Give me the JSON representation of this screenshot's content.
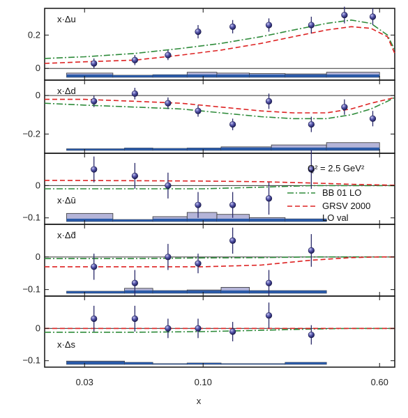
{
  "chart_data": {
    "type": "scatter",
    "x_axis": {
      "label": "x",
      "scale": "log",
      "range": [
        0.02,
        0.7
      ],
      "ticks": [
        {
          "value": 0.03,
          "label": "0.03"
        },
        {
          "value": 0.1,
          "label": "0.10"
        },
        {
          "value": 0.6,
          "label": "0.60"
        }
      ]
    },
    "legend": {
      "position": "right of third panel",
      "q2_label": "Q² = 2.5 GeV²",
      "entries": [
        {
          "name": "BB 01 LO",
          "color": "#2e8b3a",
          "style": "dash-dot"
        },
        {
          "name": "GRSV 2000",
          "name_line2": "LO val",
          "color": "#dd2222",
          "style": "dashed"
        }
      ]
    },
    "panels": [
      {
        "label": "x·Δu",
        "ylim": [
          -0.07,
          0.36
        ],
        "yticks": [
          {
            "value": 0,
            "label": "0"
          },
          {
            "value": 0.2,
            "label": "0.2"
          }
        ],
        "points": [
          {
            "x": 0.033,
            "y": 0.03,
            "err": 0.03
          },
          {
            "x": 0.05,
            "y": 0.05,
            "err": 0.03
          },
          {
            "x": 0.07,
            "y": 0.08,
            "err": 0.03
          },
          {
            "x": 0.095,
            "y": 0.22,
            "err": 0.04
          },
          {
            "x": 0.135,
            "y": 0.25,
            "err": 0.04
          },
          {
            "x": 0.195,
            "y": 0.26,
            "err": 0.04
          },
          {
            "x": 0.3,
            "y": 0.26,
            "err": 0.05
          },
          {
            "x": 0.42,
            "y": 0.32,
            "err": 0.05
          },
          {
            "x": 0.56,
            "y": 0.31,
            "err": 0.05
          }
        ],
        "curve_bb": [
          [
            0.02,
            0.06
          ],
          [
            0.03,
            0.07
          ],
          [
            0.05,
            0.09
          ],
          [
            0.08,
            0.12
          ],
          [
            0.12,
            0.15
          ],
          [
            0.18,
            0.19
          ],
          [
            0.25,
            0.23
          ],
          [
            0.35,
            0.27
          ],
          [
            0.45,
            0.29
          ],
          [
            0.55,
            0.27
          ],
          [
            0.65,
            0.2
          ],
          [
            0.7,
            0.11
          ]
        ],
        "curve_grsv": [
          [
            0.02,
            0.03
          ],
          [
            0.03,
            0.04
          ],
          [
            0.05,
            0.05
          ],
          [
            0.08,
            0.08
          ],
          [
            0.12,
            0.11
          ],
          [
            0.18,
            0.15
          ],
          [
            0.25,
            0.19
          ],
          [
            0.35,
            0.23
          ],
          [
            0.45,
            0.25
          ],
          [
            0.55,
            0.24
          ],
          [
            0.65,
            0.19
          ],
          [
            0.7,
            0.09
          ]
        ],
        "systematics": [
          {
            "x0": 0.025,
            "x1": 0.04,
            "height": 0.025
          },
          {
            "x0": 0.04,
            "x1": 0.06,
            "height": 0.012
          },
          {
            "x0": 0.06,
            "x1": 0.085,
            "height": 0.015
          },
          {
            "x0": 0.085,
            "x1": 0.115,
            "height": 0.03
          },
          {
            "x0": 0.115,
            "x1": 0.16,
            "height": 0.025
          },
          {
            "x0": 0.16,
            "x1": 0.23,
            "height": 0.022
          },
          {
            "x0": 0.23,
            "x1": 0.35,
            "height": 0.02
          },
          {
            "x0": 0.35,
            "x1": 0.6,
            "height": 0.03
          }
        ]
      },
      {
        "label": "x·Δd",
        "ylim": [
          -0.3,
          0.08
        ],
        "yticks": [
          {
            "value": 0,
            "label": "0"
          },
          {
            "value": -0.2,
            "label": "−0.2"
          }
        ],
        "points": [
          {
            "x": 0.033,
            "y": -0.03,
            "err": 0.03
          },
          {
            "x": 0.05,
            "y": 0.01,
            "err": 0.03
          },
          {
            "x": 0.07,
            "y": -0.04,
            "err": 0.03
          },
          {
            "x": 0.095,
            "y": -0.08,
            "err": 0.03
          },
          {
            "x": 0.135,
            "y": -0.15,
            "err": 0.03
          },
          {
            "x": 0.195,
            "y": -0.03,
            "err": 0.04
          },
          {
            "x": 0.3,
            "y": -0.15,
            "err": 0.04
          },
          {
            "x": 0.42,
            "y": -0.06,
            "err": 0.04
          },
          {
            "x": 0.56,
            "y": -0.12,
            "err": 0.04
          }
        ],
        "curve_bb": [
          [
            0.02,
            -0.04
          ],
          [
            0.03,
            -0.05
          ],
          [
            0.05,
            -0.06
          ],
          [
            0.08,
            -0.07
          ],
          [
            0.12,
            -0.09
          ],
          [
            0.18,
            -0.11
          ],
          [
            0.25,
            -0.12
          ],
          [
            0.35,
            -0.12
          ],
          [
            0.45,
            -0.1
          ],
          [
            0.55,
            -0.07
          ],
          [
            0.65,
            -0.03
          ],
          [
            0.7,
            -0.01
          ]
        ],
        "curve_grsv": [
          [
            0.02,
            -0.02
          ],
          [
            0.03,
            -0.02
          ],
          [
            0.05,
            -0.03
          ],
          [
            0.08,
            -0.04
          ],
          [
            0.12,
            -0.06
          ],
          [
            0.18,
            -0.08
          ],
          [
            0.25,
            -0.09
          ],
          [
            0.35,
            -0.09
          ],
          [
            0.45,
            -0.07
          ],
          [
            0.55,
            -0.04
          ],
          [
            0.65,
            -0.02
          ],
          [
            0.7,
            -0.01
          ]
        ],
        "systematics": [
          {
            "x0": 0.025,
            "x1": 0.045,
            "height": 0.008
          },
          {
            "x0": 0.045,
            "x1": 0.06,
            "height": 0.012
          },
          {
            "x0": 0.06,
            "x1": 0.085,
            "height": 0.01
          },
          {
            "x0": 0.085,
            "x1": 0.12,
            "height": 0.012
          },
          {
            "x0": 0.12,
            "x1": 0.2,
            "height": 0.018
          },
          {
            "x0": 0.2,
            "x1": 0.35,
            "height": 0.028
          },
          {
            "x0": 0.35,
            "x1": 0.6,
            "height": 0.04
          }
        ]
      },
      {
        "label": "x·Δū",
        "ylim": [
          -0.12,
          0.1
        ],
        "yticks": [
          {
            "value": 0,
            "label": "0"
          },
          {
            "value": -0.1,
            "label": "−0.1"
          }
        ],
        "points": [
          {
            "x": 0.033,
            "y": 0.05,
            "err": 0.04
          },
          {
            "x": 0.05,
            "y": 0.03,
            "err": 0.04
          },
          {
            "x": 0.07,
            "y": 0.0,
            "err": 0.04
          },
          {
            "x": 0.095,
            "y": -0.06,
            "err": 0.04
          },
          {
            "x": 0.135,
            "y": -0.06,
            "err": 0.04
          },
          {
            "x": 0.195,
            "y": -0.04,
            "err": 0.05
          },
          {
            "x": 0.3,
            "y": 0.05,
            "err": 0.06
          }
        ],
        "curve_bb": [
          [
            0.02,
            -0.01
          ],
          [
            0.05,
            -0.01
          ],
          [
            0.1,
            -0.01
          ],
          [
            0.18,
            -0.005
          ],
          [
            0.3,
            0.0
          ],
          [
            0.45,
            0.0
          ],
          [
            0.6,
            0.0
          ],
          [
            0.7,
            0.0
          ]
        ],
        "curve_grsv": [
          [
            0.02,
            0.016
          ],
          [
            0.05,
            0.015
          ],
          [
            0.1,
            0.014
          ],
          [
            0.18,
            0.012
          ],
          [
            0.3,
            0.008
          ],
          [
            0.45,
            0.004
          ],
          [
            0.6,
            0.002
          ],
          [
            0.7,
            0.001
          ]
        ],
        "systematics": [
          {
            "x0": 0.025,
            "x1": 0.04,
            "height": 0.025
          },
          {
            "x0": 0.04,
            "x1": 0.06,
            "height": 0.006
          },
          {
            "x0": 0.06,
            "x1": 0.085,
            "height": 0.015
          },
          {
            "x0": 0.085,
            "x1": 0.115,
            "height": 0.028
          },
          {
            "x0": 0.115,
            "x1": 0.16,
            "height": 0.022
          },
          {
            "x0": 0.16,
            "x1": 0.23,
            "height": 0.012
          },
          {
            "x0": 0.23,
            "x1": 0.35,
            "height": 0.008
          }
        ]
      },
      {
        "label": "x·Δd̄",
        "ylim": [
          -0.12,
          0.1
        ],
        "yticks": [
          {
            "value": 0,
            "label": "0"
          },
          {
            "value": -0.1,
            "label": "−0.1"
          }
        ],
        "points": [
          {
            "x": 0.033,
            "y": -0.03,
            "err": 0.04
          },
          {
            "x": 0.05,
            "y": -0.08,
            "err": 0.04
          },
          {
            "x": 0.07,
            "y": 0.0,
            "err": 0.04
          },
          {
            "x": 0.095,
            "y": -0.02,
            "err": 0.03
          },
          {
            "x": 0.135,
            "y": 0.05,
            "err": 0.04
          },
          {
            "x": 0.195,
            "y": -0.08,
            "err": 0.04
          },
          {
            "x": 0.3,
            "y": 0.02,
            "err": 0.05
          }
        ],
        "curve_bb": [
          [
            0.02,
            -0.005
          ],
          [
            0.05,
            -0.005
          ],
          [
            0.1,
            -0.003
          ],
          [
            0.18,
            -0.002
          ],
          [
            0.3,
            0.0
          ],
          [
            0.45,
            0.0
          ],
          [
            0.6,
            0.0
          ],
          [
            0.7,
            0.0
          ]
        ],
        "curve_grsv": [
          [
            0.02,
            -0.03
          ],
          [
            0.05,
            -0.03
          ],
          [
            0.1,
            -0.03
          ],
          [
            0.18,
            -0.025
          ],
          [
            0.3,
            -0.01
          ],
          [
            0.45,
            -0.002
          ],
          [
            0.6,
            0.0
          ],
          [
            0.7,
            0.0
          ]
        ],
        "systematics": [
          {
            "x0": 0.025,
            "x1": 0.045,
            "height": 0.006
          },
          {
            "x0": 0.045,
            "x1": 0.06,
            "height": 0.015
          },
          {
            "x0": 0.06,
            "x1": 0.085,
            "height": 0.008
          },
          {
            "x0": 0.085,
            "x1": 0.12,
            "height": 0.01
          },
          {
            "x0": 0.12,
            "x1": 0.16,
            "height": 0.018
          },
          {
            "x0": 0.16,
            "x1": 0.35,
            "height": 0.008
          }
        ]
      },
      {
        "label": "x·Δs",
        "ylim": [
          -0.12,
          0.1
        ],
        "yticks": [
          {
            "value": 0,
            "label": "0"
          },
          {
            "value": -0.1,
            "label": "−0.1"
          }
        ],
        "points": [
          {
            "x": 0.033,
            "y": 0.03,
            "err": 0.04
          },
          {
            "x": 0.05,
            "y": 0.03,
            "err": 0.04
          },
          {
            "x": 0.07,
            "y": 0.0,
            "err": 0.03
          },
          {
            "x": 0.095,
            "y": 0.0,
            "err": 0.03
          },
          {
            "x": 0.135,
            "y": -0.01,
            "err": 0.03
          },
          {
            "x": 0.195,
            "y": 0.04,
            "err": 0.04
          },
          {
            "x": 0.3,
            "y": -0.02,
            "err": 0.03
          }
        ],
        "curve_bb": [
          [
            0.02,
            -0.012
          ],
          [
            0.05,
            -0.012
          ],
          [
            0.1,
            -0.01
          ],
          [
            0.18,
            -0.006
          ],
          [
            0.3,
            -0.002
          ],
          [
            0.45,
            0.0
          ],
          [
            0.6,
            0.0
          ],
          [
            0.7,
            0.0
          ]
        ],
        "curve_grsv": [
          [
            0.02,
            0.0
          ],
          [
            0.05,
            0.0
          ],
          [
            0.1,
            0.0
          ],
          [
            0.18,
            0.0
          ],
          [
            0.3,
            0.0
          ],
          [
            0.45,
            0.0
          ],
          [
            0.6,
            0.0
          ],
          [
            0.7,
            0.0
          ]
        ],
        "systematics": [
          {
            "x0": 0.025,
            "x1": 0.045,
            "height": 0.01
          },
          {
            "x0": 0.045,
            "x1": 0.06,
            "height": 0.006
          },
          {
            "x0": 0.06,
            "x1": 0.085,
            "height": 0.002
          },
          {
            "x0": 0.085,
            "x1": 0.12,
            "height": 0.004
          },
          {
            "x0": 0.12,
            "x1": 0.23,
            "height": 0.002
          },
          {
            "x0": 0.23,
            "x1": 0.35,
            "height": 0.006
          }
        ]
      }
    ]
  },
  "colors": {
    "frame": "#111111",
    "point_fill": "#3a3a8c",
    "point_highlight": "#b8b8e8",
    "error_bar": "#2a2a6a",
    "sys_fill": "#b4b4d8",
    "sys_dark": "#2a5aa8",
    "bb_curve": "#2e8b3a",
    "grsv_curve": "#dd2222"
  }
}
